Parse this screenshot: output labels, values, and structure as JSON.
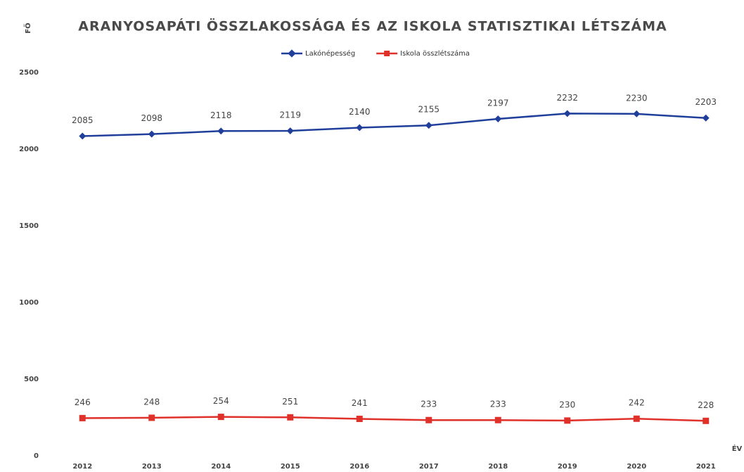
{
  "chart_data": {
    "type": "line",
    "title": "ARANYOSAPÁTI ÖSSZLAKOSSÁGA ÉS AZ ISKOLA STATISZTIKAI LÉTSZÁMA",
    "y_label": "FŐ",
    "x_label": "ÉV",
    "categories": [
      "2012",
      "2013",
      "2014",
      "2015",
      "2016",
      "2017",
      "2018",
      "2019",
      "2020",
      "2021"
    ],
    "series": [
      {
        "name": "Lakónépesség",
        "color": "#1f3f9a",
        "values": [
          2085,
          2098,
          2118,
          2119,
          2140,
          2155,
          2197,
          2232,
          2230,
          2203
        ]
      },
      {
        "name": "Iskola összlétszáma",
        "color": "#e0302a",
        "values": [
          246,
          248,
          254,
          251,
          241,
          233,
          233,
          230,
          242,
          228
        ]
      }
    ],
    "ylim": [
      0,
      2500
    ],
    "yticks": [
      0,
      500,
      1000,
      1500,
      2000,
      2500
    ],
    "grid": false,
    "legend": "top"
  }
}
